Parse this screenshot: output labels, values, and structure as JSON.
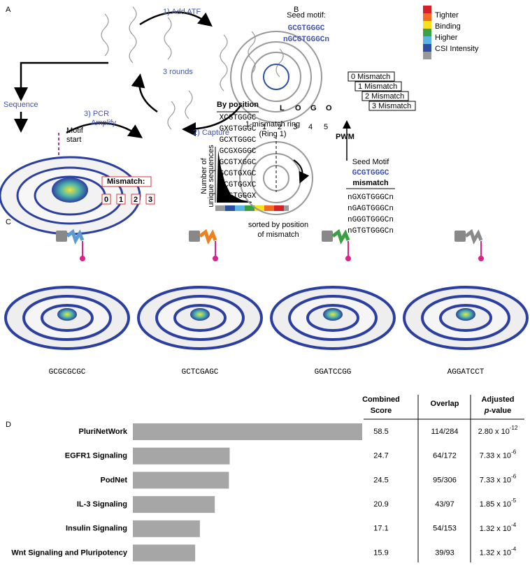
{
  "panels": {
    "a": "A",
    "b": "B",
    "c": "C",
    "d": "D"
  },
  "panel_a": {
    "step1": "1) Add ATF",
    "rounds": "3 rounds",
    "sequence": "Sequence",
    "step3": [
      "3)  PCR",
      "Amplify"
    ],
    "step2": "2) Capture",
    "motif_start": [
      "Motif",
      "start"
    ],
    "mismatch": "Mismatch:",
    "mismatch_rings": [
      "0",
      "1",
      "2",
      "3"
    ],
    "y_label": [
      "Number of",
      "unique sequences"
    ],
    "logo_letters": [
      "L",
      "O",
      "G",
      "O"
    ],
    "logo_positions": [
      "1",
      "2",
      "3",
      "4",
      "5"
    ],
    "pwm": "PWM"
  },
  "panel_b": {
    "seed_label": "Seed motif:",
    "seed": "GCGTGGGC",
    "seed_padded": "nGCGTGGGCn",
    "legend": [
      "Tighter",
      "Binding",
      "Higher",
      "CSI Intensity"
    ],
    "legend_colors": [
      "#d62027",
      "#f26b21",
      "#f7e11b",
      "#3aa043",
      "#5ab4e5",
      "#2b4fa3",
      "#999999"
    ],
    "ring_labels": [
      "0 Mismatch",
      "1 Mismatch",
      "2 Mismatch",
      "3 Mismatch"
    ],
    "ring_title": [
      "1-mismatch ring",
      "(Ring 1)"
    ],
    "by_position": "By position",
    "position_sequences": [
      {
        "text": "XCGTGGGC",
        "color": "#3a86c8"
      },
      {
        "text": "GXGTGGGC",
        "color": "#e0701f"
      },
      {
        "text": "GCXTGGGC",
        "color": "#6a2c91"
      },
      {
        "text": "GCGXGGGC",
        "color": "#7aa63a"
      },
      {
        "text": "GCGTXGGC",
        "color": "#a3282a"
      },
      {
        "text": "GCGTGXGC",
        "color": "#6aaee0"
      },
      {
        "text": "GCGTGGXC",
        "color": "#c8262c"
      },
      {
        "text": "GCGTGGGX",
        "color": "#b9894a"
      }
    ],
    "seed_motif_label": "Seed Motif",
    "seed2": "GCGTGGGC",
    "mismatch_header": "mismatch",
    "mismatch_sequences": [
      "nGXGTGGGCn",
      "nGAGTGGGCn",
      "nGGGTGGGCn",
      "nGTGTGGGCn"
    ],
    "mismatch_color": "#e0701f",
    "caption": [
      "sorted by position",
      "of mismatch"
    ]
  },
  "panel_c": {
    "sequences": [
      "GCGCGCGC",
      "GCTCGAGC",
      "GGATCCGG",
      "AGGATCCT"
    ],
    "colors": [
      "#5b9bd5",
      "#f07f1e",
      "#3aa043",
      "#8a8a8a"
    ]
  },
  "chart_data": {
    "type": "bar",
    "color": "#a6a6a6",
    "categories": [
      "PluriNetWork",
      "EGFR1 Signaling",
      "PodNet",
      "IL-3 Signaling",
      "Insulin Signaling",
      "Wnt Signaling and Pluripotency"
    ],
    "values": [
      58.5,
      24.7,
      24.5,
      20.9,
      17.1,
      15.9
    ],
    "headers": {
      "score": [
        "Combined",
        "Score"
      ],
      "overlap": "Overlap",
      "p_value": [
        "Adjusted",
        "p",
        "-value"
      ]
    },
    "overlap": [
      "114/284",
      "64/172",
      "95/306",
      "43/97",
      "54/153",
      "39/93"
    ],
    "p_values": [
      {
        "mantissa": "2.80 x 10",
        "exponent": "-12"
      },
      {
        "mantissa": "7.33 x 10",
        "exponent": "-6"
      },
      {
        "mantissa": "7.33 x 10",
        "exponent": "-6"
      },
      {
        "mantissa": "1.85 x 10",
        "exponent": "-5"
      },
      {
        "mantissa": "1.32 x 10",
        "exponent": "-4"
      },
      {
        "mantissa": "1.32 x 10",
        "exponent": "-4"
      }
    ]
  }
}
